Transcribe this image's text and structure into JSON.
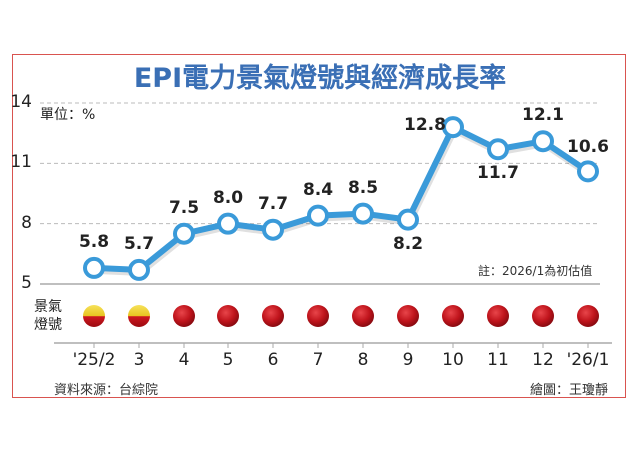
{
  "header": {
    "title": "EPI電力景氣燈號與經濟成長率"
  },
  "unit_label": "單位：%",
  "note": "註：2026/1為初估值",
  "signal_row_label": "景氣\n燈號",
  "source": "資料來源：台綜院",
  "credit": "繪圖：王瓊靜",
  "colors": {
    "line": "#3a9ad9",
    "title": "#3a6fb5",
    "frame": "#d9534f",
    "red_light": "#c0141c",
    "yellow_red_light_top": "#f0d020"
  },
  "chart_data": {
    "type": "line",
    "title": "EPI電力景氣燈號與經濟成長率",
    "ylabel": "單位：%",
    "xlabel": "",
    "ylim": [
      5,
      14
    ],
    "yticks": [
      5,
      8,
      11,
      14
    ],
    "grid": true,
    "categories": [
      "'25/2",
      "3",
      "4",
      "5",
      "6",
      "7",
      "8",
      "9",
      "10",
      "11",
      "12",
      "'26/1"
    ],
    "series": [
      {
        "name": "EPI電力景氣成長率",
        "values": [
          5.8,
          5.7,
          7.5,
          8.0,
          7.7,
          8.4,
          8.5,
          8.2,
          12.8,
          11.7,
          12.1,
          10.6
        ]
      }
    ],
    "value_labels": [
      "5.8",
      "5.7",
      "7.5",
      "8.0",
      "7.7",
      "8.4",
      "8.5",
      "8.2",
      "12.8",
      "11.7",
      "12.1",
      "10.6"
    ],
    "signals": [
      "yellow-red",
      "yellow-red",
      "red",
      "red",
      "red",
      "red",
      "red",
      "red",
      "red",
      "red",
      "red",
      "red"
    ],
    "annotations": [
      "註：2026/1為初估值"
    ]
  }
}
